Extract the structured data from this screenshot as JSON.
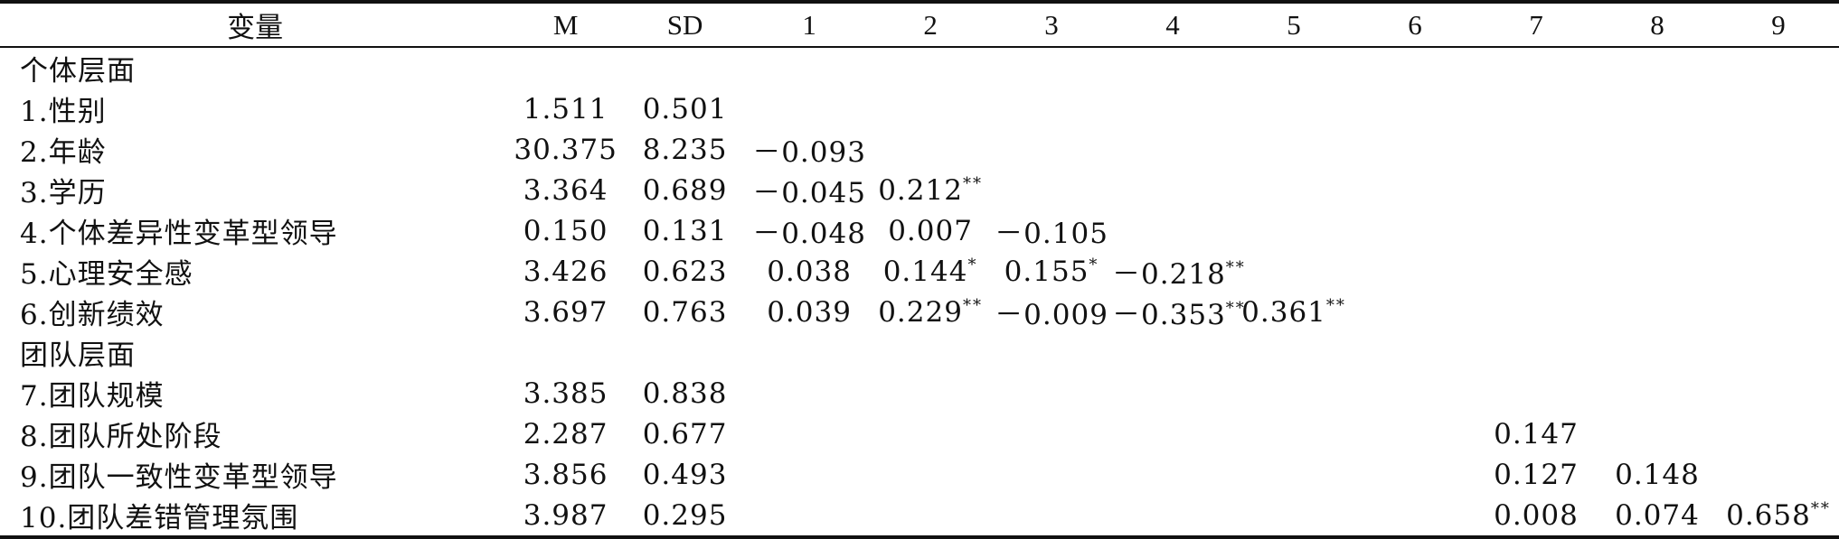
{
  "table": {
    "headers": [
      "变量",
      "M",
      "SD",
      "1",
      "2",
      "3",
      "4",
      "5",
      "6",
      "7",
      "8",
      "9"
    ],
    "rows": [
      {
        "type": "section",
        "label": "个体层面",
        "cells": []
      },
      {
        "type": "data",
        "label": "1.性别",
        "cells": [
          "1.511",
          "0.501",
          "",
          "",
          "",
          "",
          "",
          "",
          "",
          "",
          ""
        ],
        "sups": [
          "",
          "",
          "",
          "",
          "",
          "",
          "",
          "",
          "",
          "",
          ""
        ]
      },
      {
        "type": "data",
        "label": "2.年龄",
        "cells": [
          "30.375",
          "8.235",
          "－0.093",
          "",
          "",
          "",
          "",
          "",
          "",
          "",
          ""
        ],
        "sups": [
          "",
          "",
          "",
          "",
          "",
          "",
          "",
          "",
          "",
          "",
          ""
        ]
      },
      {
        "type": "data",
        "label": "3.学历",
        "cells": [
          "3.364",
          "0.689",
          "－0.045",
          "0.212",
          "",
          "",
          "",
          "",
          "",
          "",
          ""
        ],
        "sups": [
          "",
          "",
          "",
          "**",
          "",
          "",
          "",
          "",
          "",
          "",
          ""
        ]
      },
      {
        "type": "data",
        "label": "4.个体差异性变革型领导",
        "cells": [
          "0.150",
          "0.131",
          "－0.048",
          "0.007",
          "－0.105",
          "",
          "",
          "",
          "",
          "",
          ""
        ],
        "sups": [
          "",
          "",
          "",
          "",
          "",
          "",
          "",
          "",
          "",
          "",
          ""
        ]
      },
      {
        "type": "data",
        "label": "5.心理安全感",
        "cells": [
          "3.426",
          "0.623",
          "0.038",
          "0.144",
          "0.155",
          "－0.218",
          "",
          "",
          "",
          "",
          ""
        ],
        "sups": [
          "",
          "",
          "",
          "*",
          "*",
          "**",
          "",
          "",
          "",
          "",
          ""
        ]
      },
      {
        "type": "data",
        "label": "6.创新绩效",
        "cells": [
          "3.697",
          "0.763",
          "0.039",
          "0.229",
          "－0.009",
          "－0.353",
          "0.361",
          "",
          "",
          "",
          ""
        ],
        "sups": [
          "",
          "",
          "",
          "**",
          "",
          "**",
          "**",
          "",
          "",
          "",
          ""
        ]
      },
      {
        "type": "section",
        "label": "团队层面",
        "cells": []
      },
      {
        "type": "data",
        "label": "7.团队规模",
        "cells": [
          "3.385",
          "0.838",
          "",
          "",
          "",
          "",
          "",
          "",
          "",
          "",
          ""
        ],
        "sups": [
          "",
          "",
          "",
          "",
          "",
          "",
          "",
          "",
          "",
          "",
          ""
        ]
      },
      {
        "type": "data",
        "label": "8.团队所处阶段",
        "cells": [
          "2.287",
          "0.677",
          "",
          "",
          "",
          "",
          "",
          "",
          "0.147",
          "",
          ""
        ],
        "sups": [
          "",
          "",
          "",
          "",
          "",
          "",
          "",
          "",
          "",
          "",
          ""
        ]
      },
      {
        "type": "data",
        "label": "9.团队一致性变革型领导",
        "cells": [
          "3.856",
          "0.493",
          "",
          "",
          "",
          "",
          "",
          "",
          "0.127",
          "0.148",
          ""
        ],
        "sups": [
          "",
          "",
          "",
          "",
          "",
          "",
          "",
          "",
          "",
          "",
          ""
        ]
      },
      {
        "type": "data",
        "label": "10.团队差错管理氛围",
        "cells": [
          "3.987",
          "0.295",
          "",
          "",
          "",
          "",
          "",
          "",
          "0.008",
          "0.074",
          "0.658"
        ],
        "sups": [
          "",
          "",
          "",
          "",
          "",
          "",
          "",
          "",
          "",
          "",
          "**"
        ]
      }
    ]
  }
}
